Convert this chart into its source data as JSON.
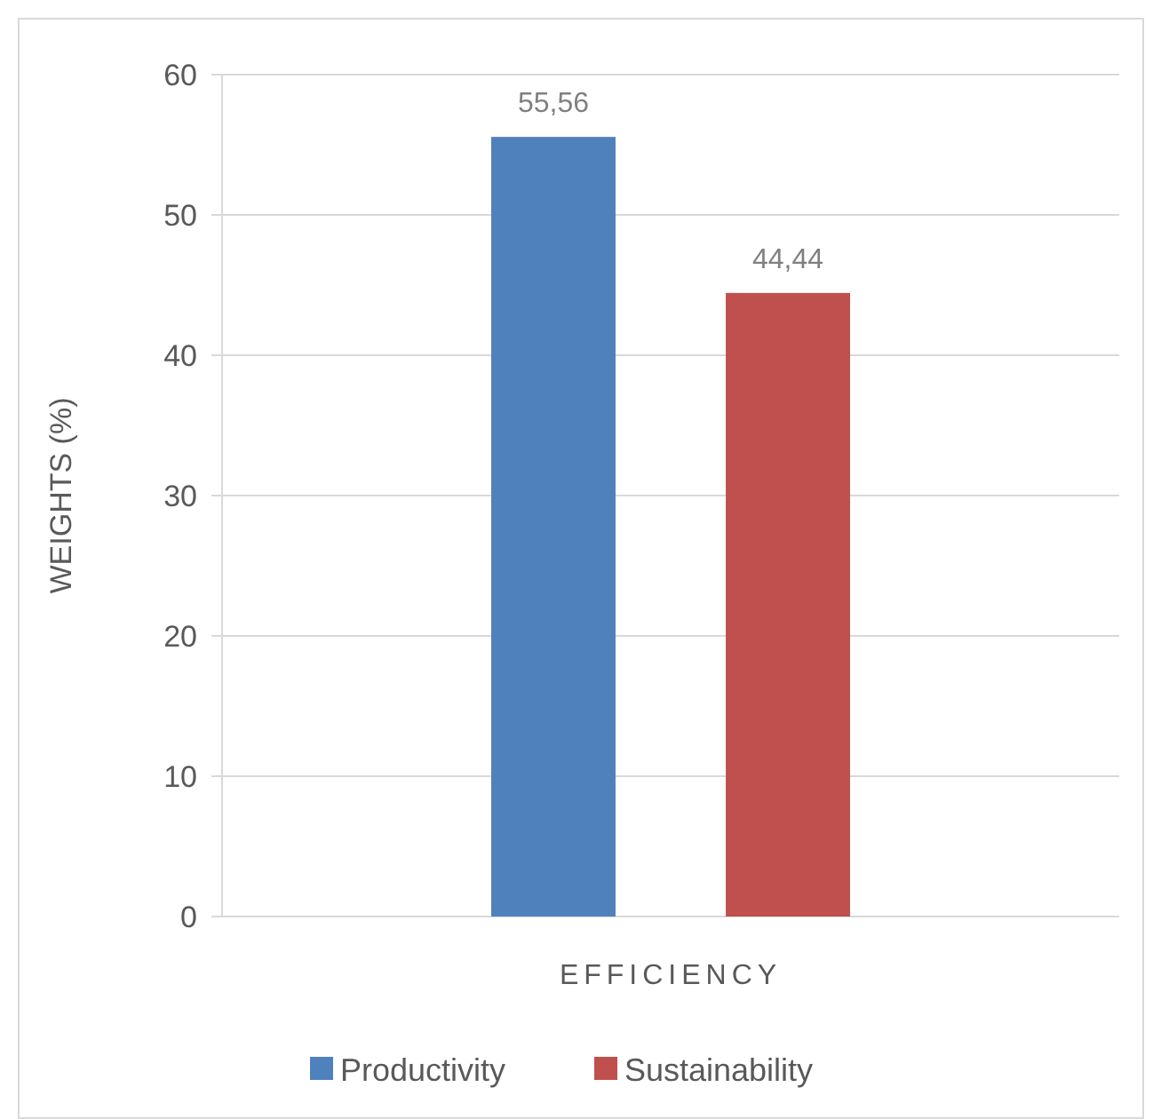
{
  "chart_data": {
    "type": "bar",
    "ylabel": "WEIGHTS (%)",
    "categories": [
      "EFFICIENCY"
    ],
    "series": [
      {
        "name": "Productivity",
        "color": "#4f81bd",
        "values": [
          55.56
        ],
        "value_labels": [
          "55,56"
        ]
      },
      {
        "name": "Sustainability",
        "color": "#c0504d",
        "values": [
          44.44
        ],
        "value_labels": [
          "44,44"
        ]
      }
    ],
    "ylim": [
      0,
      60
    ],
    "yticks": [
      0,
      10,
      20,
      30,
      40,
      50,
      60
    ],
    "grid": "y",
    "legend": "bottom"
  }
}
